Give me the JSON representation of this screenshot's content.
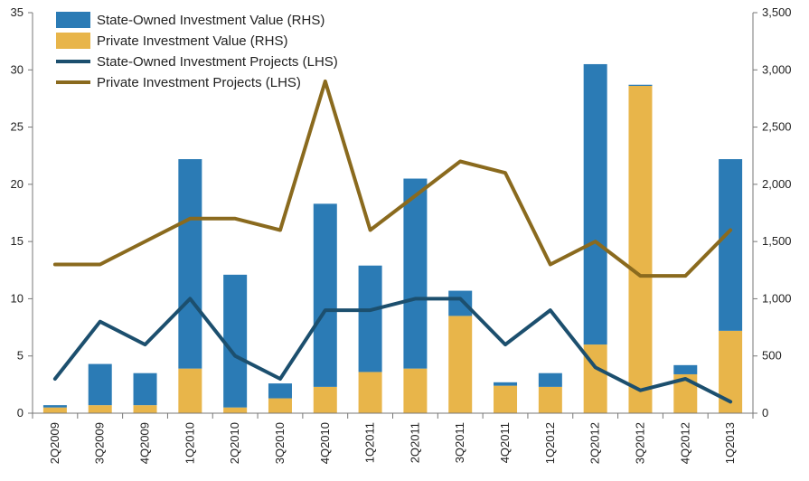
{
  "chart_data": {
    "type": "bar",
    "categories": [
      "2Q2009",
      "3Q2009",
      "4Q2009",
      "1Q2010",
      "2Q2010",
      "3Q2010",
      "4Q2010",
      "1Q2011",
      "2Q2011",
      "3Q2011",
      "4Q2011",
      "1Q2012",
      "2Q2012",
      "3Q2012",
      "4Q2012",
      "1Q2013"
    ],
    "series": [
      {
        "name": "State-Owned Investment Value (RHS)",
        "type": "bar",
        "axis": "right",
        "stack": "value",
        "color": "#2b7bb5",
        "values": [
          20,
          360,
          280,
          1830,
          1160,
          130,
          1600,
          930,
          1660,
          220,
          30,
          120,
          2450,
          10,
          80,
          1500
        ]
      },
      {
        "name": "Private Investment Value (RHS)",
        "type": "bar",
        "axis": "right",
        "stack": "value",
        "color": "#e8b54a",
        "values": [
          50,
          70,
          70,
          390,
          50,
          130,
          230,
          360,
          390,
          850,
          240,
          230,
          600,
          2860,
          340,
          720
        ]
      },
      {
        "name": "State-Owned Investment Projects (LHS)",
        "type": "line",
        "axis": "left",
        "color": "#1c4f6e",
        "values": [
          3,
          8,
          6,
          10,
          5,
          3,
          9,
          9,
          10,
          10,
          6,
          9,
          4,
          2,
          3,
          1
        ]
      },
      {
        "name": "Private Investment Projects (LHS)",
        "type": "line",
        "axis": "left",
        "color": "#8a6a1e",
        "values": [
          13,
          13,
          15,
          17,
          17,
          16,
          29,
          16,
          19,
          22,
          21,
          13,
          15,
          12,
          12,
          16
        ]
      }
    ],
    "y_left": {
      "min": 0,
      "max": 35,
      "ticks": [
        "0",
        "5",
        "10",
        "15",
        "20",
        "25",
        "30",
        "35"
      ],
      "tick_values": [
        0,
        5,
        10,
        15,
        20,
        25,
        30,
        35
      ]
    },
    "y_right": {
      "min": 0,
      "max": 3500,
      "ticks": [
        "0",
        "500",
        "1,000",
        "1,500",
        "2,000",
        "2,500",
        "3,000",
        "3,500"
      ],
      "tick_values": [
        0,
        500,
        1000,
        1500,
        2000,
        2500,
        3000,
        3500
      ]
    },
    "legend_placement": "top-left",
    "grid": false
  }
}
